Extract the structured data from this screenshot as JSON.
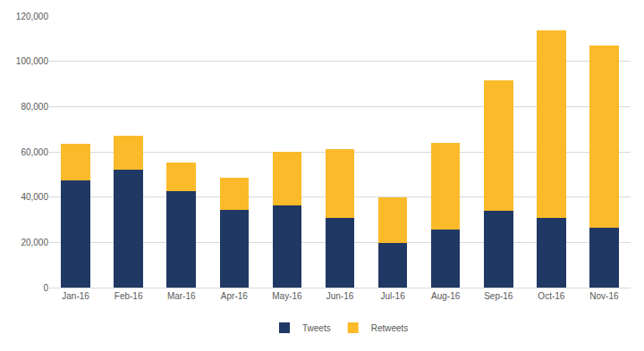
{
  "chart_data": {
    "type": "bar",
    "stacked": true,
    "categories": [
      "Jan-16",
      "Feb-16",
      "Mar-16",
      "Apr-16",
      "May-16",
      "Jun-16",
      "Jul-16",
      "Aug-16",
      "Sep-16",
      "Oct-16",
      "Nov-16"
    ],
    "series": [
      {
        "name": "Tweets",
        "color": "#203864",
        "values": [
          47300,
          52200,
          42700,
          34200,
          36200,
          30800,
          19800,
          25700,
          33800,
          30800,
          26600
        ]
      },
      {
        "name": "Retweets",
        "color": "#FBBA2A",
        "values": [
          16200,
          14900,
          12500,
          14500,
          23900,
          30200,
          19900,
          38400,
          57700,
          82900,
          80400
        ]
      }
    ],
    "ylim": [
      0,
      120000
    ],
    "yticks": [
      0,
      {
        "value": 20000,
        "label": "20,000"
      },
      {
        "value": 40000,
        "label": "40,000"
      },
      {
        "value": 60000,
        "label": "60,000"
      },
      {
        "value": 80000,
        "label": "80,000"
      },
      {
        "value": 100000,
        "label": "100,000"
      },
      {
        "value": 120000,
        "label": "120,000"
      }
    ],
    "grid": true,
    "legend": "bottom"
  }
}
